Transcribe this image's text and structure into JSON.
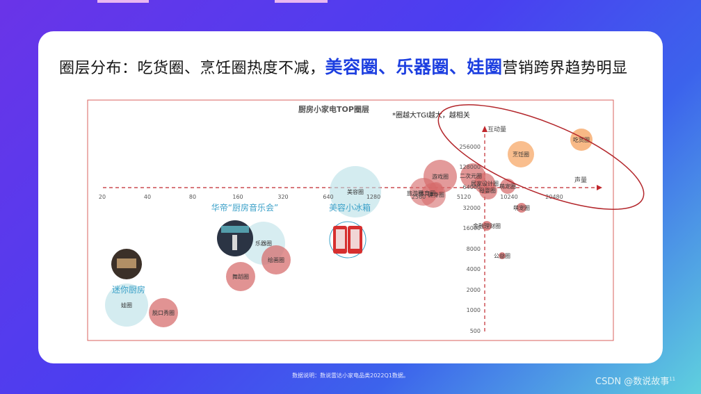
{
  "headline": {
    "part1": "圈层分布：吃货圈、烹饪圈热度不减，",
    "highlight": "美容圈、乐器圈、娃圈",
    "part2": "营销跨界趋势明显"
  },
  "footnote": "数据说明：数说雷达小家电品类2022Q1数据。",
  "watermark": "CSDN @数说故事",
  "watermark_sup": "11",
  "colors": {
    "accent_blue": "#1d3fe0",
    "frame_red": "#d9605e",
    "axis_red": "#c0272d",
    "orange_bubble": "#f6a25e",
    "red_bubble": "#d56a6a",
    "blue_bubble": "#b7dfe6",
    "callout_blue": "#3aa0c8"
  },
  "chart_data": {
    "type": "scatter",
    "title": "厨房小家电TOP圈层",
    "note": "*圈越大TGI越大，越相关",
    "x_axis_label": "声量",
    "y_axis_label": "互动量",
    "x_ticks": [
      "20",
      "40",
      "80",
      "160",
      "320",
      "640",
      "1280",
      "2560",
      "5120",
      "10240",
      "20480"
    ],
    "y_ticks_upper": [
      "256000",
      "128000",
      "64000"
    ],
    "y_ticks_lower": [
      "32000",
      "16000",
      "8000",
      "4000",
      "2000",
      "1000",
      "500"
    ],
    "bubbles": [
      {
        "label": "吃货圈",
        "color": "orange"
      },
      {
        "label": "烹饪圈",
        "color": "orange"
      },
      {
        "label": "游戏圈",
        "color": "red"
      },
      {
        "label": "二次元圈",
        "color": "red"
      },
      {
        "label": "居家设计圈",
        "color": "red"
      },
      {
        "label": "母婴圈",
        "color": "red"
      },
      {
        "label": "萌宠圈",
        "color": "red"
      },
      {
        "label": "旅游圈",
        "color": "red"
      },
      {
        "label": "体育圈",
        "color": "red"
      },
      {
        "label": "健身圈",
        "color": "red"
      },
      {
        "label": "萌宠圈",
        "color": "red"
      },
      {
        "label": "金融理财圈",
        "color": "red"
      },
      {
        "label": "公益圈",
        "color": "red"
      },
      {
        "label": "美容圈",
        "color": "blue"
      },
      {
        "label": "乐器圈",
        "color": "blue"
      },
      {
        "label": "绘画圈",
        "color": "red"
      },
      {
        "label": "舞蹈圈",
        "color": "red"
      },
      {
        "label": "娃圈",
        "color": "blue"
      },
      {
        "label": "脱口秀圈",
        "color": "red"
      }
    ],
    "callouts": [
      "华帝“厨房音乐会”",
      "美容小冰箱",
      "迷你厨房"
    ]
  }
}
